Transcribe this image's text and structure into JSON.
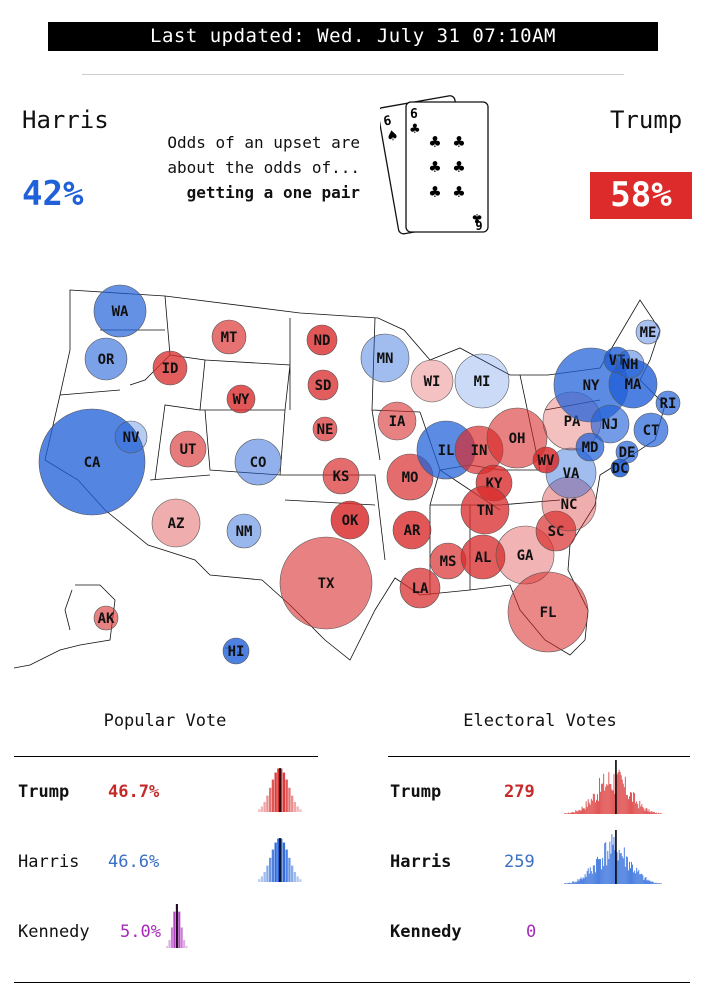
{
  "header": {
    "updated": "Last updated: Wed. July 31 07:10AM"
  },
  "odds": {
    "harris_label": "Harris",
    "harris_pct": "42%",
    "trump_label": "Trump",
    "trump_pct": "58%",
    "line1": "Odds of an upset are",
    "line2": "about the odds of...",
    "line3": "getting a one pair",
    "card_back_rank": "6",
    "card_back_suit": "♠",
    "card_front_rank": "6",
    "card_front_suit": "♣"
  },
  "colors": {
    "harris": "#2060d8",
    "trump": "#d92b2b",
    "kennedy": "#a62ab8",
    "harris_text": "#3a6fc4",
    "trump_text": "#c42a2a"
  },
  "popular": {
    "title": "Popular Vote",
    "rows": [
      {
        "name": "Trump",
        "value": "46.7%"
      },
      {
        "name": "Harris",
        "value": "46.6%"
      },
      {
        "name": "Kennedy",
        "value": "5.0%"
      }
    ]
  },
  "electoral": {
    "title": "Electoral Votes",
    "rows": [
      {
        "name": "Trump",
        "value": "279"
      },
      {
        "name": "Harris",
        "value": "259"
      },
      {
        "name": "Kennedy",
        "value": "0"
      }
    ]
  },
  "chart_data": {
    "type": "scatter",
    "title": "",
    "states": [
      {
        "abbr": "WA",
        "party": "D",
        "margin": 0.7
      },
      {
        "abbr": "OR",
        "party": "D",
        "margin": 0.55
      },
      {
        "abbr": "CA",
        "party": "D",
        "margin": 0.8
      },
      {
        "abbr": "NV",
        "party": "D",
        "margin": 0.15
      },
      {
        "abbr": "ID",
        "party": "R",
        "margin": 0.8
      },
      {
        "abbr": "MT",
        "party": "R",
        "margin": 0.65
      },
      {
        "abbr": "WY",
        "party": "R",
        "margin": 0.85
      },
      {
        "abbr": "UT",
        "party": "R",
        "margin": 0.6
      },
      {
        "abbr": "AZ",
        "party": "R",
        "margin": 0.25
      },
      {
        "abbr": "CO",
        "party": "D",
        "margin": 0.4
      },
      {
        "abbr": "NM",
        "party": "D",
        "margin": 0.35
      },
      {
        "abbr": "ND",
        "party": "R",
        "margin": 0.85
      },
      {
        "abbr": "SD",
        "party": "R",
        "margin": 0.8
      },
      {
        "abbr": "NE",
        "party": "R",
        "margin": 0.7
      },
      {
        "abbr": "KS",
        "party": "R",
        "margin": 0.7
      },
      {
        "abbr": "OK",
        "party": "R",
        "margin": 0.9
      },
      {
        "abbr": "TX",
        "party": "R",
        "margin": 0.55
      },
      {
        "abbr": "MN",
        "party": "D",
        "margin": 0.3
      },
      {
        "abbr": "IA",
        "party": "R",
        "margin": 0.55
      },
      {
        "abbr": "MO",
        "party": "R",
        "margin": 0.7
      },
      {
        "abbr": "AR",
        "party": "R",
        "margin": 0.85
      },
      {
        "abbr": "LA",
        "party": "R",
        "margin": 0.75
      },
      {
        "abbr": "WI",
        "party": "R",
        "margin": 0.1
      },
      {
        "abbr": "MI",
        "party": "D",
        "margin": 0.02
      },
      {
        "abbr": "IL",
        "party": "D",
        "margin": 0.75
      },
      {
        "abbr": "IN",
        "party": "R",
        "margin": 0.7
      },
      {
        "abbr": "OH",
        "party": "R",
        "margin": 0.55
      },
      {
        "abbr": "KY",
        "party": "R",
        "margin": 0.85
      },
      {
        "abbr": "TN",
        "party": "R",
        "margin": 0.8
      },
      {
        "abbr": "MS",
        "party": "R",
        "margin": 0.7
      },
      {
        "abbr": "AL",
        "party": "R",
        "margin": 0.8
      },
      {
        "abbr": "GA",
        "party": "R",
        "margin": 0.2
      },
      {
        "abbr": "FL",
        "party": "R",
        "margin": 0.5
      },
      {
        "abbr": "SC",
        "party": "R",
        "margin": 0.7
      },
      {
        "abbr": "NC",
        "party": "R",
        "margin": 0.25
      },
      {
        "abbr": "VA",
        "party": "D",
        "margin": 0.3
      },
      {
        "abbr": "WV",
        "party": "R",
        "margin": 0.9
      },
      {
        "abbr": "PA",
        "party": "R",
        "margin": 0.12
      },
      {
        "abbr": "NY",
        "party": "D",
        "margin": 0.75
      },
      {
        "abbr": "NJ",
        "party": "D",
        "margin": 0.6
      },
      {
        "abbr": "MD",
        "party": "D",
        "margin": 0.75
      },
      {
        "abbr": "DE",
        "party": "D",
        "margin": 0.7
      },
      {
        "abbr": "DC",
        "party": "D",
        "margin": 0.95
      },
      {
        "abbr": "CT",
        "party": "D",
        "margin": 0.7
      },
      {
        "abbr": "RI",
        "party": "D",
        "margin": 0.7
      },
      {
        "abbr": "MA",
        "party": "D",
        "margin": 0.85
      },
      {
        "abbr": "VT",
        "party": "D",
        "margin": 0.85
      },
      {
        "abbr": "NH",
        "party": "D",
        "margin": 0.35
      },
      {
        "abbr": "ME",
        "party": "D",
        "margin": 0.25
      },
      {
        "abbr": "AK",
        "party": "R",
        "margin": 0.55
      },
      {
        "abbr": "HI",
        "party": "D",
        "margin": 0.85
      }
    ]
  }
}
